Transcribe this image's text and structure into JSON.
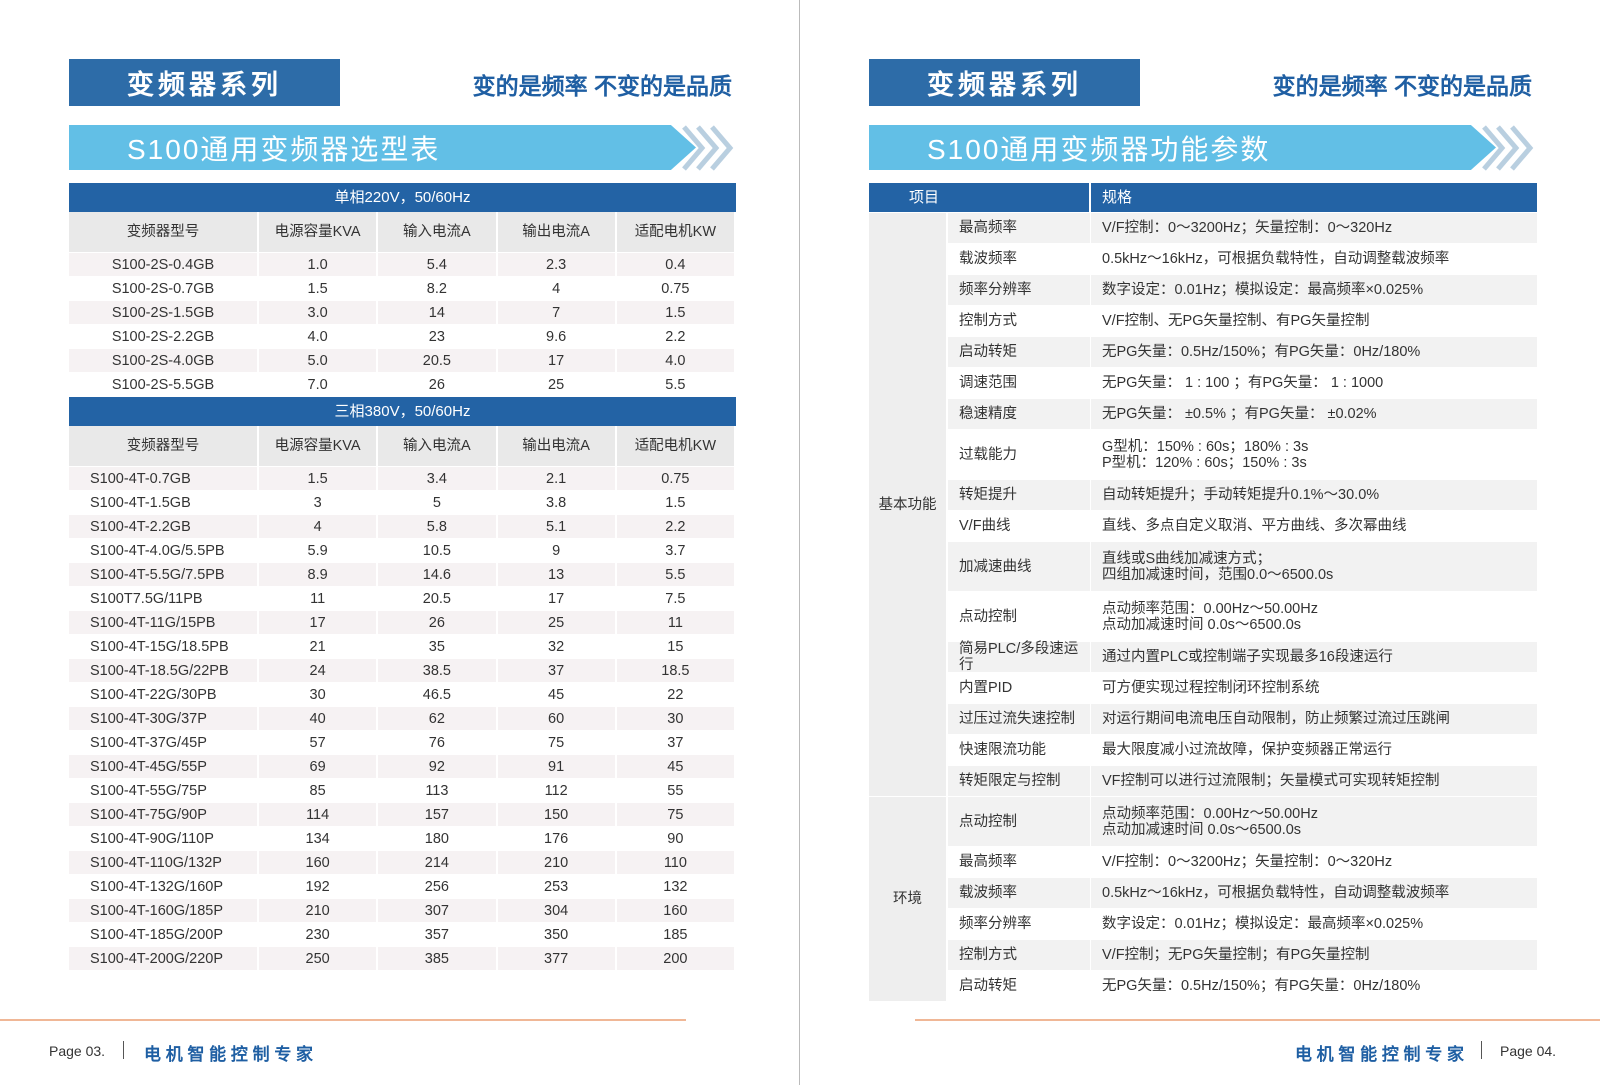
{
  "left": {
    "header_title": "变频器系列",
    "slogan": "变的是频率 不变的是品质",
    "section_title": "S100通用变频器选型表",
    "tables": [
      {
        "heading": "单相220V，50/60Hz",
        "columns": [
          "变频器型号",
          "电源容量KVA",
          "输入电流A",
          "输出电流A",
          "适配电机KW"
        ],
        "rows": [
          [
            "S100-2S-0.4GB",
            "1.0",
            "5.4",
            "2.3",
            "0.4"
          ],
          [
            "S100-2S-0.7GB",
            "1.5",
            "8.2",
            "4",
            "0.75"
          ],
          [
            "S100-2S-1.5GB",
            "3.0",
            "14",
            "7",
            "1.5"
          ],
          [
            "S100-2S-2.2GB",
            "4.0",
            "23",
            "9.6",
            "2.2"
          ],
          [
            "S100-2S-4.0GB",
            "5.0",
            "20.5",
            "17",
            "4.0"
          ],
          [
            "S100-2S-5.5GB",
            "7.0",
            "26",
            "25",
            "5.5"
          ]
        ]
      },
      {
        "heading": "三相380V，50/60Hz",
        "columns": [
          "变频器型号",
          "电源容量KVA",
          "输入电流A",
          "输出电流A",
          "适配电机KW"
        ],
        "rows": [
          [
            "S100-4T-0.7GB",
            "1.5",
            "3.4",
            "2.1",
            "0.75"
          ],
          [
            "S100-4T-1.5GB",
            "3",
            "5",
            "3.8",
            "1.5"
          ],
          [
            "S100-4T-2.2GB",
            "4",
            "5.8",
            "5.1",
            "2.2"
          ],
          [
            "S100-4T-4.0G/5.5PB",
            "5.9",
            "10.5",
            "9",
            "3.7"
          ],
          [
            "S100-4T-5.5G/7.5PB",
            "8.9",
            "14.6",
            "13",
            "5.5"
          ],
          [
            "S100T7.5G/11PB",
            "11",
            "20.5",
            "17",
            "7.5"
          ],
          [
            "S100-4T-11G/15PB",
            "17",
            "26",
            "25",
            "11"
          ],
          [
            "S100-4T-15G/18.5PB",
            "21",
            "35",
            "32",
            "15"
          ],
          [
            "S100-4T-18.5G/22PB",
            "24",
            "38.5",
            "37",
            "18.5"
          ],
          [
            "S100-4T-22G/30PB",
            "30",
            "46.5",
            "45",
            "22"
          ],
          [
            "S100-4T-30G/37P",
            "40",
            "62",
            "60",
            "30"
          ],
          [
            "S100-4T-37G/45P",
            "57",
            "76",
            "75",
            "37"
          ],
          [
            "S100-4T-45G/55P",
            "69",
            "92",
            "91",
            "45"
          ],
          [
            "S100-4T-55G/75P",
            "85",
            "113",
            "112",
            "55"
          ],
          [
            "S100-4T-75G/90P",
            "114",
            "157",
            "150",
            "75"
          ],
          [
            "S100-4T-90G/110P",
            "134",
            "180",
            "176",
            "90"
          ],
          [
            "S100-4T-110G/132P",
            "160",
            "214",
            "210",
            "110"
          ],
          [
            "S100-4T-132G/160P",
            "192",
            "256",
            "253",
            "132"
          ],
          [
            "S100-4T-160G/185P",
            "210",
            "307",
            "304",
            "160"
          ],
          [
            "S100-4T-185G/200P",
            "230",
            "357",
            "350",
            "185"
          ],
          [
            "S100-4T-200G/220P",
            "250",
            "385",
            "377",
            "200"
          ]
        ]
      }
    ],
    "page": "Page 03.",
    "tagline": "电 机 智 能 控 制 专 家"
  },
  "right": {
    "header_title": "变频器系列",
    "slogan": "变的是频率 不变的是品质",
    "section_title": "S100通用变频器功能参数",
    "columns": [
      "项目",
      "规格"
    ],
    "groups": [
      {
        "name": "基本功能",
        "rows": [
          {
            "item": "最高频率",
            "spec": "V/F控制：0～3200Hz；矢量控制：0～320Hz"
          },
          {
            "item": "载波频率",
            "spec": "0.5kHz～16kHz，可根据负载特性，自动调整载波频率"
          },
          {
            "item": "频率分辨率",
            "spec": "数字设定：0.01Hz；模拟设定：最高频率×0.025%"
          },
          {
            "item": "控制方式",
            "spec": "V/F控制、无PG矢量控制、有PG矢量控制"
          },
          {
            "item": "启动转矩",
            "spec": "无PG矢量：0.5Hz/150%；有PG矢量：0Hz/180%"
          },
          {
            "item": "调速范围",
            "spec": "无PG矢量：  1 : 100 ；有PG矢量：  1 : 1000"
          },
          {
            "item": "稳速精度",
            "spec": "无PG矢量：  ±0.5% ；有PG矢量：  ±0.02%"
          },
          {
            "item": "过载能力",
            "spec": "G型机：150% : 60s；180% : 3s\nP型机：120% : 60s；150% : 3s"
          },
          {
            "item": "转矩提升",
            "spec": "自动转矩提升；手动转矩提升0.1%～30.0%"
          },
          {
            "item": "V/F曲线",
            "spec": "直线、多点自定义取消、平方曲线、多次幂曲线"
          },
          {
            "item": "加减速曲线",
            "spec": "直线或S曲线加减速方式；\n四组加减速时间，范围0.0～6500.0s"
          },
          {
            "item": "点动控制",
            "spec": "点动频率范围：0.00Hz～50.00Hz\n点动加减速时间 0.0s～6500.0s"
          },
          {
            "item": "简易PLC/多段速运行",
            "spec": "通过内置PLC或控制端子实现最多16段速运行"
          },
          {
            "item": "内置PID",
            "spec": "可方便实现过程控制闭环控制系统"
          },
          {
            "item": "过压过流失速控制",
            "spec": "对运行期间电流电压自动限制，防止频繁过流过压跳闸"
          },
          {
            "item": "快速限流功能",
            "spec": "最大限度减小过流故障，保护变频器正常运行"
          },
          {
            "item": "转矩限定与控制",
            "spec": "VF控制可以进行过流限制；矢量模式可实现转矩控制"
          }
        ]
      },
      {
        "name": "环境",
        "rows": [
          {
            "item": "点动控制",
            "spec": "点动频率范围：0.00Hz～50.00Hz\n点动加减速时间 0.0s～6500.0s"
          },
          {
            "item": "最高频率",
            "spec": "V/F控制：0～3200Hz；矢量控制：0～320Hz"
          },
          {
            "item": "载波频率",
            "spec": "0.5kHz～16kHz，可根据负载特性，自动调整载波频率"
          },
          {
            "item": "频率分辨率",
            "spec": "数字设定：0.01Hz；模拟设定：最高频率×0.025%"
          },
          {
            "item": "控制方式",
            "spec": "V/F控制；无PG矢量控制；有PG矢量控制"
          },
          {
            "item": "启动转矩",
            "spec": "无PG矢量：0.5Hz/150%；有PG矢量：0Hz/180%"
          }
        ]
      }
    ],
    "page": "Page 04.",
    "tagline": "电 机 智 能 控 制 专 家"
  }
}
